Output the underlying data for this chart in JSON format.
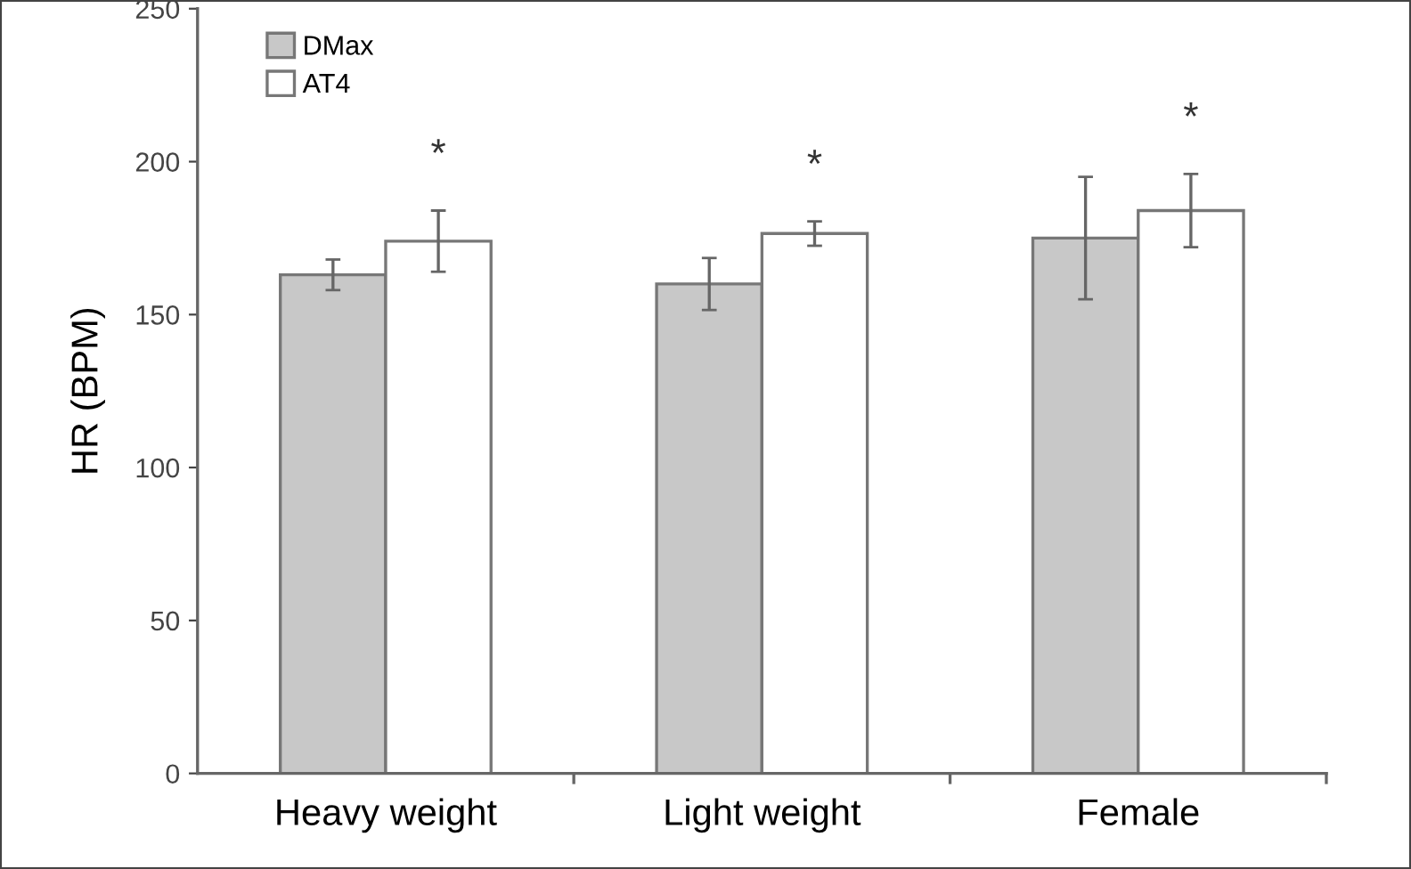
{
  "chart_data": {
    "type": "bar",
    "ylabel": "HR (BPM)",
    "categories": [
      "Heavy weight",
      "Light weight",
      "Female"
    ],
    "series": [
      {
        "name": "DMax",
        "color": "#c8c8c8",
        "values": [
          163,
          160,
          175
        ],
        "errors": [
          5,
          8.5,
          20
        ]
      },
      {
        "name": "AT4",
        "color": "#ffffff",
        "values": [
          174,
          176.5,
          184
        ],
        "errors": [
          10,
          4,
          12
        ]
      }
    ],
    "ylim": [
      0,
      250
    ],
    "yticks": [
      0,
      50,
      100,
      150,
      200,
      250
    ],
    "grid": false,
    "legend": "top left",
    "annotations": [
      "*",
      "*",
      "*"
    ]
  }
}
